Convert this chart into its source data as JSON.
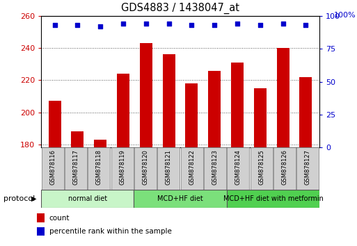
{
  "title": "GDS4883 / 1438047_at",
  "samples": [
    "GSM878116",
    "GSM878117",
    "GSM878118",
    "GSM878119",
    "GSM878120",
    "GSM878121",
    "GSM878122",
    "GSM878123",
    "GSM878124",
    "GSM878125",
    "GSM878126",
    "GSM878127"
  ],
  "bar_values": [
    207,
    188,
    183,
    224,
    243,
    236,
    218,
    226,
    231,
    215,
    240,
    222
  ],
  "percentile_values": [
    93,
    93,
    92,
    94,
    94,
    94,
    93,
    93,
    94,
    93,
    94,
    93
  ],
  "bar_color": "#cc0000",
  "dot_color": "#0000cc",
  "ylim_left": [
    178,
    260
  ],
  "ylim_right": [
    0,
    100
  ],
  "yticks_left": [
    180,
    200,
    220,
    240,
    260
  ],
  "yticks_right": [
    0,
    25,
    50,
    75,
    100
  ],
  "groups": [
    {
      "label": "normal diet",
      "start": 0,
      "end": 4,
      "color": "#c8f5c8"
    },
    {
      "label": "MCD+HF diet",
      "start": 4,
      "end": 8,
      "color": "#7be07b"
    },
    {
      "label": "MCD+HF diet with metformin",
      "start": 8,
      "end": 12,
      "color": "#50d050"
    }
  ],
  "group_row_label": "protocol",
  "legend_items": [
    {
      "label": "count",
      "color": "#cc0000"
    },
    {
      "label": "percentile rank within the sample",
      "color": "#0000cc"
    }
  ],
  "background_color": "#ffffff",
  "plot_bg_color": "#ffffff",
  "tick_label_color_left": "#cc0000",
  "tick_label_color_right": "#0000cc",
  "grid_color": "#555555",
  "sample_box_color": "#d0d0d0",
  "sample_box_edge": "#888888"
}
